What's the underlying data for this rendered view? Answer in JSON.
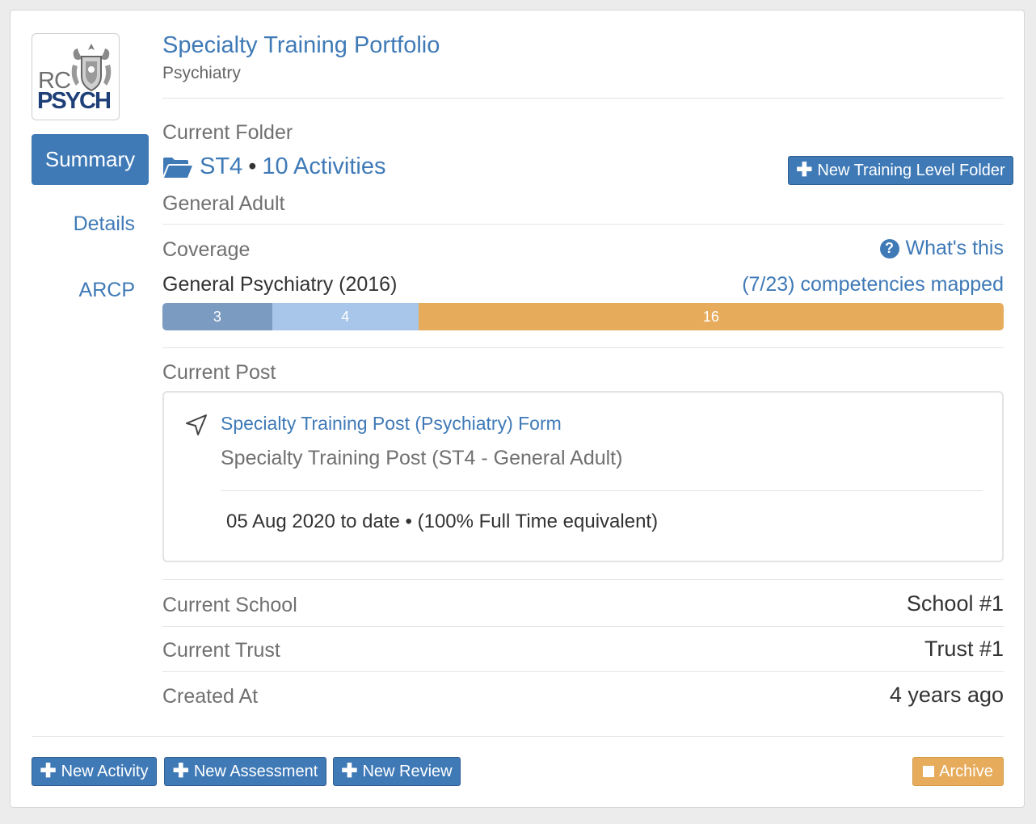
{
  "logo": {
    "line1": "RC",
    "line2": "PSYCH"
  },
  "nav": {
    "summary": "Summary",
    "details": "Details",
    "arcp": "ARCP"
  },
  "header": {
    "title": "Specialty Training Portfolio",
    "subtitle": "Psychiatry"
  },
  "current_folder": {
    "label": "Current Folder",
    "level": "ST4",
    "separator": "•",
    "activities": "10 Activities",
    "specialty": "General Adult",
    "new_folder_button": "New Training Level Folder"
  },
  "coverage": {
    "label": "Coverage",
    "help_link": "What's this",
    "curriculum": "General Psychiatry (2016)",
    "mapped_text": "(7/23) competencies mapped",
    "total": 23,
    "segments": [
      {
        "value": 3,
        "color": "#7b9bc1"
      },
      {
        "value": 4,
        "color": "#a8c6ea"
      },
      {
        "value": 16,
        "color": "#e6ac5c"
      }
    ]
  },
  "current_post": {
    "label": "Current Post",
    "form_link": "Specialty Training Post (Psychiatry) Form",
    "post_type": "Specialty Training Post (ST4 - General Adult)",
    "dates": "05 Aug 2020 to date • (100% Full Time equivalent)"
  },
  "details": {
    "school_label": "Current School",
    "school_value": "School #1",
    "trust_label": "Current Trust",
    "trust_value": "Trust #1",
    "created_label": "Created At",
    "created_value": "4 years ago"
  },
  "footer": {
    "new_activity": "New Activity",
    "new_assessment": "New Assessment",
    "new_review": "New Review",
    "archive": "Archive"
  }
}
